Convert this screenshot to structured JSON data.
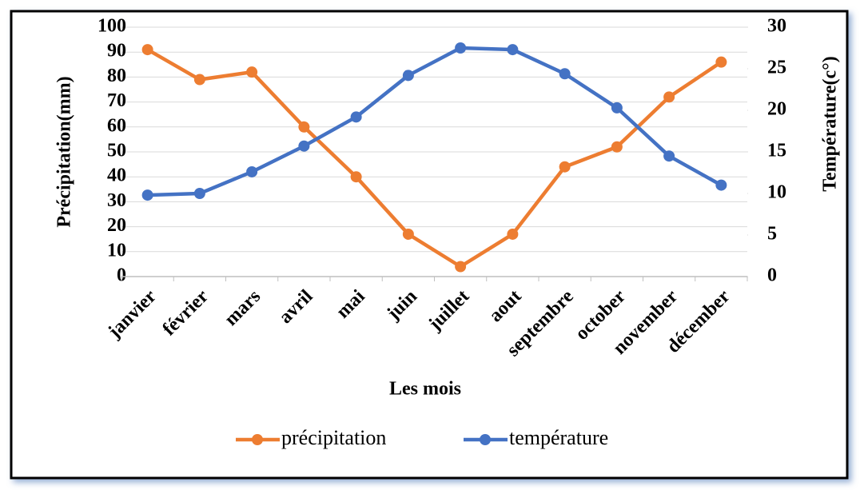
{
  "chart_data": {
    "type": "line",
    "categories": [
      "janvier",
      "février",
      "mars",
      "avril",
      "mai",
      "juin",
      "juillet",
      "aout",
      "septembre",
      "october",
      "november",
      "décember"
    ],
    "series": [
      {
        "name": "précipitation",
        "color": "#ed7d31",
        "values": [
          91,
          79,
          82,
          60,
          40,
          17,
          4,
          17,
          44,
          52,
          72,
          86
        ]
      },
      {
        "name": "température",
        "color": "#4472c4",
        "axis": "y2",
        "values": [
          9.8,
          10,
          12.6,
          15.7,
          19.2,
          24.2,
          27.5,
          27.3,
          24.4,
          20.3,
          14.5,
          11
        ]
      }
    ],
    "ylabel": "Précipitation(mm)",
    "y2label": "Température(c°)",
    "xlabel": "Les mois",
    "ylim": [
      0,
      100
    ],
    "yticks": [
      0,
      10,
      20,
      30,
      40,
      50,
      60,
      70,
      80,
      90,
      100
    ],
    "y2lim": [
      0,
      30
    ],
    "y2ticks": [
      0,
      5,
      10,
      15,
      20,
      25,
      30
    ],
    "grid": true,
    "legend": "bottom"
  }
}
